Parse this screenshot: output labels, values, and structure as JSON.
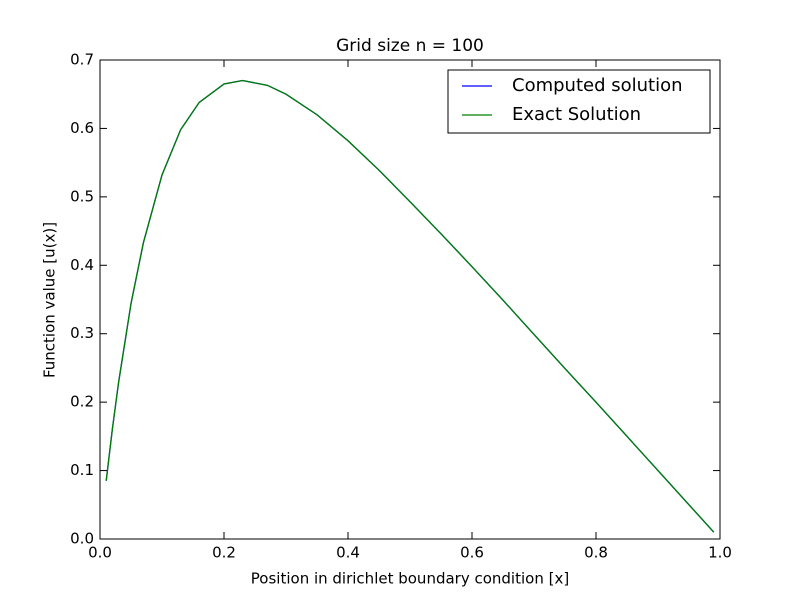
{
  "chart_data": {
    "type": "line",
    "title": "Grid size n = 100",
    "x_label": "Position in dirichlet boundary condition [x]",
    "y_label": "Function value [u(x)]",
    "x": [
      0.01,
      0.02,
      0.03,
      0.05,
      0.07,
      0.1,
      0.13,
      0.16,
      0.2,
      0.23,
      0.27,
      0.3,
      0.35,
      0.4,
      0.45,
      0.5,
      0.55,
      0.6,
      0.65,
      0.7,
      0.75,
      0.8,
      0.85,
      0.9,
      0.95,
      0.99
    ],
    "series": [
      {
        "name": "Computed solution",
        "color": "#0000ff",
        "values": [
          0.085,
          0.161,
          0.229,
          0.344,
          0.433,
          0.532,
          0.598,
          0.638,
          0.665,
          0.67,
          0.663,
          0.65,
          0.62,
          0.582,
          0.539,
          0.493,
          0.446,
          0.398,
          0.349,
          0.299,
          0.249,
          0.2,
          0.15,
          0.1,
          0.05,
          0.01
        ]
      },
      {
        "name": "Exact Solution",
        "color": "#008000",
        "values": [
          0.085,
          0.161,
          0.229,
          0.344,
          0.433,
          0.532,
          0.598,
          0.638,
          0.665,
          0.67,
          0.663,
          0.65,
          0.62,
          0.582,
          0.539,
          0.493,
          0.446,
          0.398,
          0.349,
          0.299,
          0.249,
          0.2,
          0.15,
          0.1,
          0.05,
          0.01
        ]
      }
    ],
    "xlim": [
      0,
      1
    ],
    "xticks": [
      {
        "value": 0,
        "label": "0.0"
      },
      0.2,
      0.4,
      0.6,
      0.8,
      {
        "value": 1,
        "label": "1.0"
      }
    ],
    "ylim": [
      0,
      0.7
    ],
    "yticks": [
      {
        "value": 0,
        "label": "0.0"
      },
      0.1,
      0.2,
      0.3,
      0.4,
      0.5,
      0.6,
      0.7
    ],
    "legend": "upper right"
  }
}
